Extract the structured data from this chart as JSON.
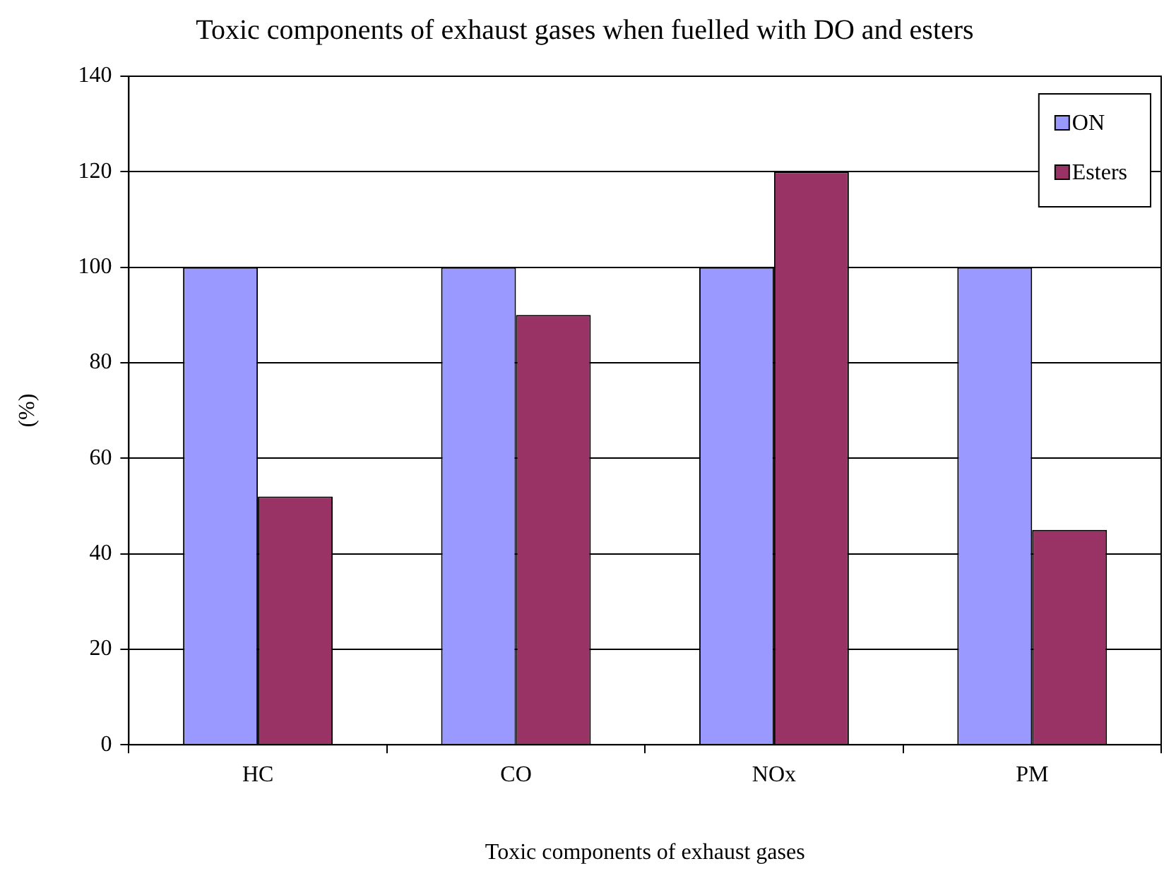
{
  "chart_data": {
    "type": "bar",
    "title": "Toxic components of exhaust gases when fuelled with DO and esters",
    "xlabel": "Toxic components of exhaust gases",
    "ylabel": "(%)",
    "categories": [
      "HC",
      "CO",
      "NOx",
      "PM"
    ],
    "series": [
      {
        "name": "ON",
        "color": "#9999ff",
        "values": [
          100,
          100,
          100,
          100
        ]
      },
      {
        "name": "Esters",
        "color": "#993366",
        "values": [
          52,
          90,
          120,
          45
        ]
      }
    ],
    "ylim": [
      0,
      140
    ],
    "yticks": [
      0,
      20,
      40,
      60,
      80,
      100,
      120,
      140
    ],
    "grid": "y",
    "legend": "top right"
  }
}
